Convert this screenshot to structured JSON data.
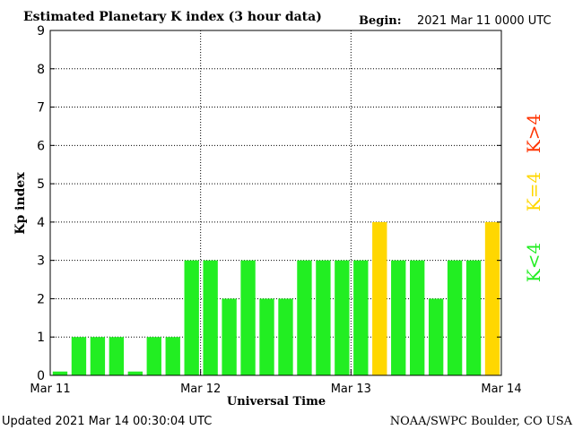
{
  "chart_data": {
    "type": "bar",
    "title": "Estimated Planetary K index (3 hour data)",
    "begin_label": "Begin:",
    "begin_value": "2021 Mar 11 0000 UTC",
    "xlabel": "Universal Time",
    "ylabel": "Kp index",
    "ylim": [
      0,
      9
    ],
    "yticks": [
      "0",
      "1",
      "2",
      "3",
      "4",
      "5",
      "6",
      "7",
      "8",
      "9"
    ],
    "xticks": [
      "Mar 11",
      "Mar 12",
      "Mar 13",
      "Mar 14"
    ],
    "grid": true,
    "bar_count": 24,
    "values": [
      0.1,
      1,
      1,
      1,
      0.1,
      1,
      1,
      3,
      3,
      2,
      3,
      2,
      2,
      3,
      3,
      3,
      3,
      4,
      3,
      3,
      2,
      3,
      3,
      4
    ],
    "colors": {
      "low": "#22ee22",
      "mid": "#ffd700",
      "high": "#ff3300"
    },
    "legend": [
      {
        "label": "K<4",
        "color": "#22ee22"
      },
      {
        "label": "K=4",
        "color": "#ffd700"
      },
      {
        "label": "K>4",
        "color": "#ff3300"
      }
    ]
  },
  "footer": {
    "updated": "Updated 2021 Mar 14 00:30:04 UTC",
    "source": "NOAA/SWPC Boulder, CO USA"
  }
}
